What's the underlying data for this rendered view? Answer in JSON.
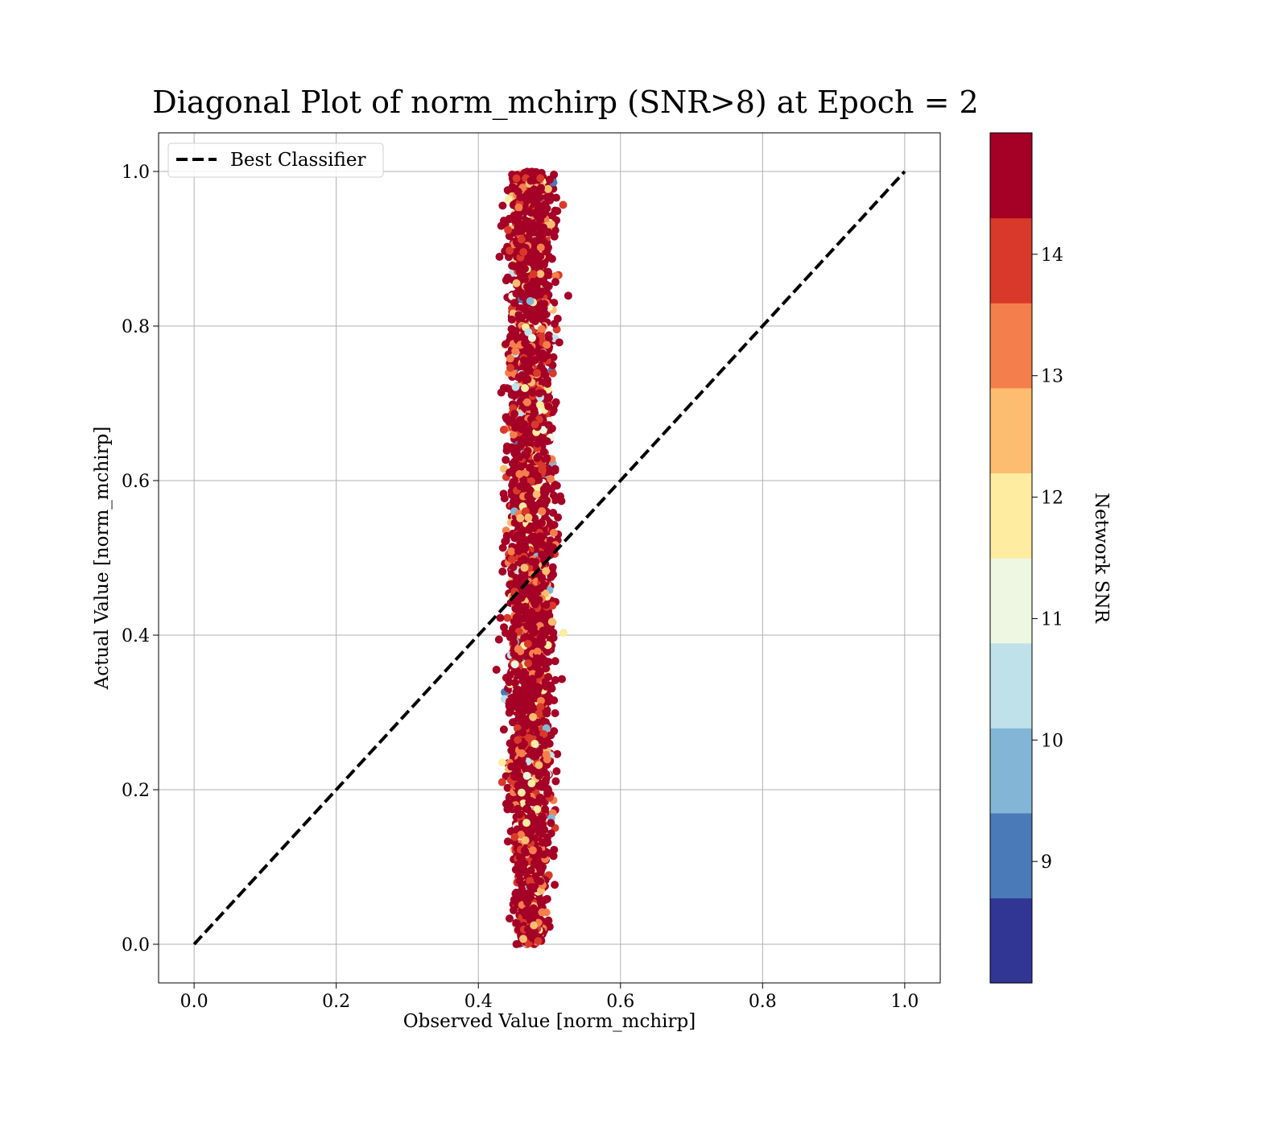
{
  "chart_data": {
    "type": "scatter",
    "title": "Diagonal Plot of norm_mchirp (SNR>8) at Epoch = 2",
    "xlabel": "Observed Value [norm_mchirp]",
    "ylabel": "Actual Value [norm_mchirp]",
    "xlim": [
      -0.05,
      1.05
    ],
    "ylim": [
      -0.05,
      1.05
    ],
    "xticks": [
      "0.0",
      "0.2",
      "0.4",
      "0.6",
      "0.8",
      "1.0"
    ],
    "yticks": [
      "0.0",
      "0.2",
      "0.4",
      "0.6",
      "0.8",
      "1.0"
    ],
    "grid": true,
    "legend": {
      "position": "upper-left",
      "entries": [
        {
          "label": "Best Classifier",
          "style": "black-dashed-line"
        }
      ]
    },
    "reference_line": {
      "name": "Best Classifier",
      "x": [
        0.0,
        1.0
      ],
      "y": [
        0.0,
        1.0
      ],
      "color": "#000000"
    },
    "scatter_cloud": {
      "x_center": 0.473,
      "x_spread": 0.014,
      "y_range": [
        0.0,
        1.0
      ],
      "dominant_color": "#a50026"
    },
    "colorbar": {
      "label": "Network SNR",
      "range": [
        8.0,
        15.0
      ],
      "ticks": [
        "9",
        "10",
        "11",
        "12",
        "13",
        "14"
      ],
      "colors": [
        "#313695",
        "#4a7ab7",
        "#83b6d6",
        "#bfe1ea",
        "#eef7e1",
        "#feeca0",
        "#fdbd71",
        "#f57f4c",
        "#d9392a",
        "#a50026"
      ]
    }
  }
}
